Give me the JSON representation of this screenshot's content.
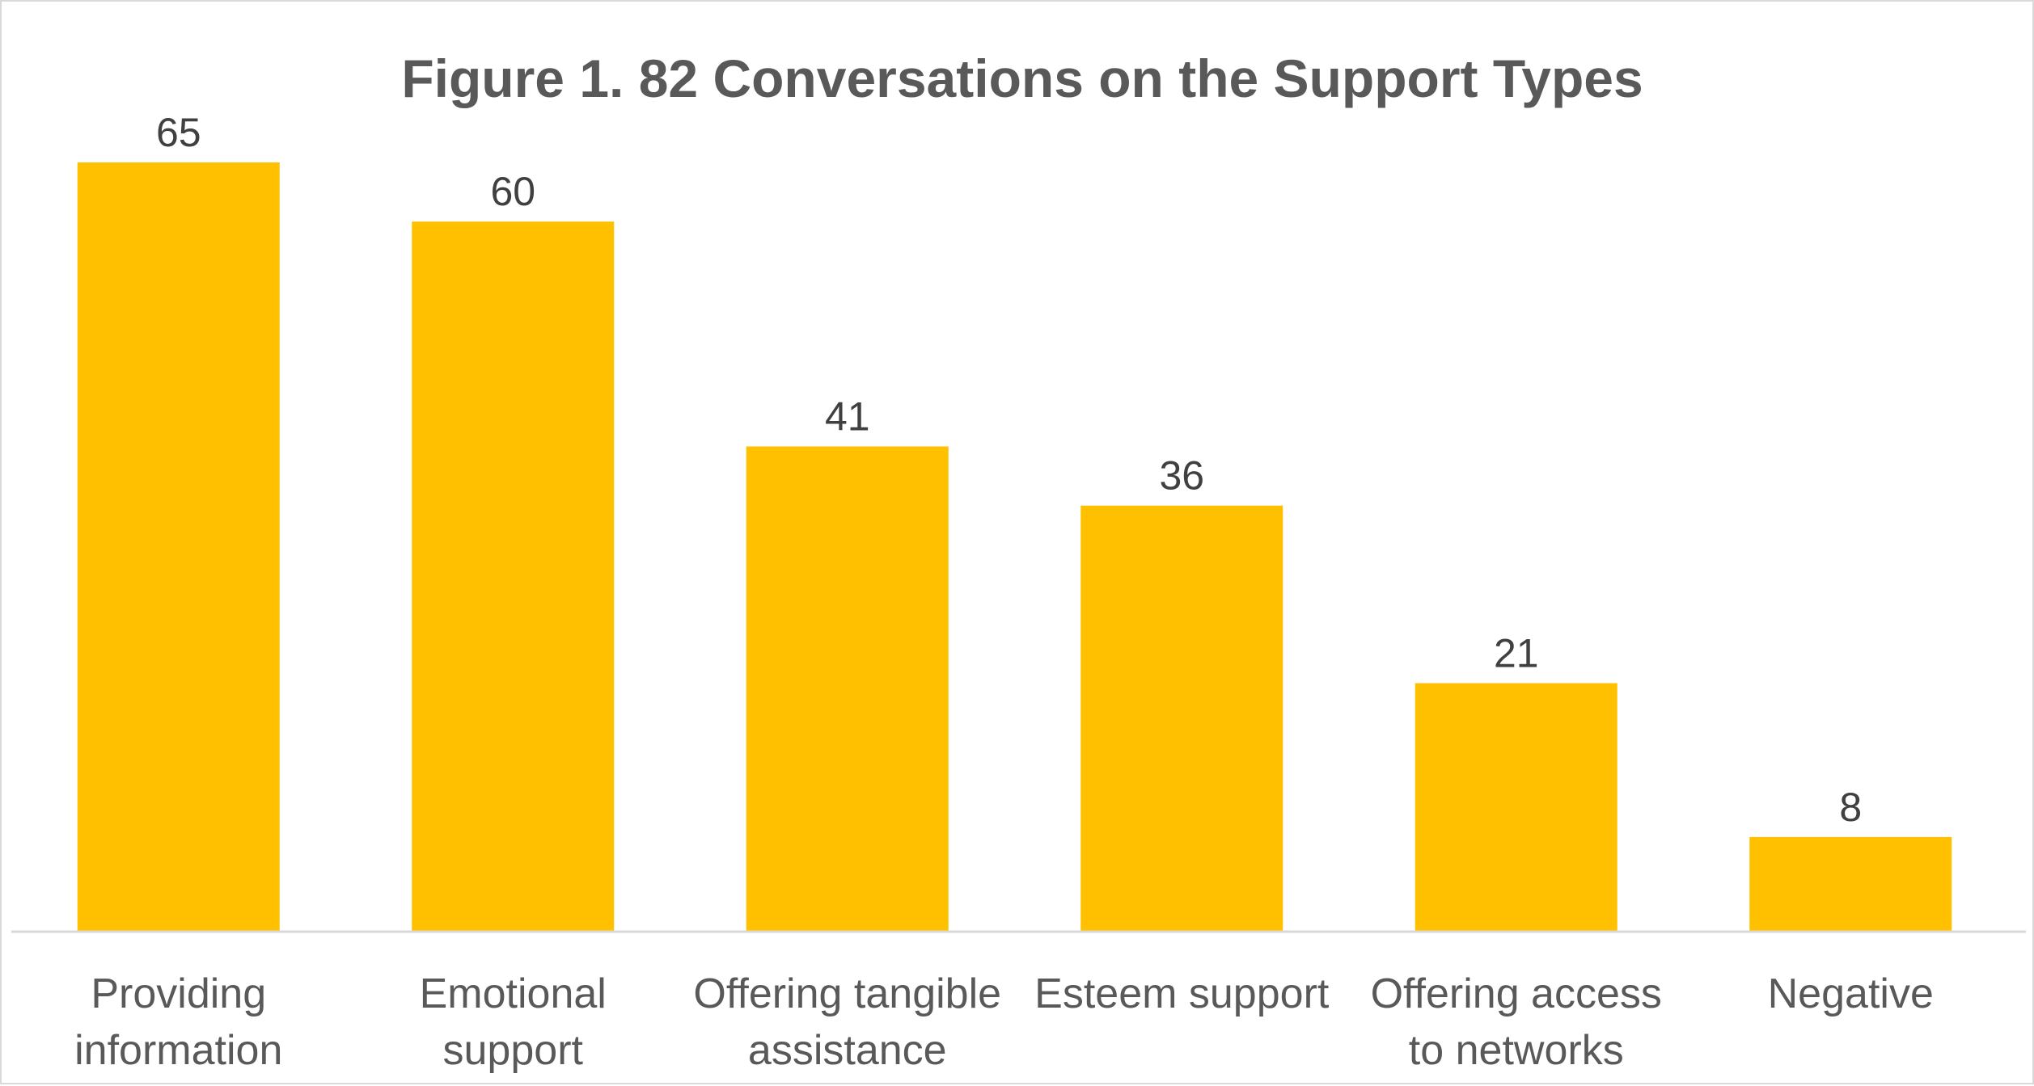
{
  "chart_data": {
    "type": "bar",
    "title": "Figure 1. 82 Conversations on the Support Types",
    "categories": [
      [
        "Providing",
        "information"
      ],
      [
        "Emotional",
        "support"
      ],
      [
        "Offering tangible",
        "assistance"
      ],
      [
        "Esteem support"
      ],
      [
        "Offering access",
        "to networks"
      ],
      [
        "Negative"
      ]
    ],
    "values": [
      65,
      60,
      41,
      36,
      21,
      8
    ],
    "xlabel": "",
    "ylabel": "",
    "ylim": [
      0,
      65
    ],
    "grid": false,
    "legend": "none",
    "data_labels": true,
    "bar_color": "#FFC000",
    "axis_color": "#D9D9D9"
  }
}
